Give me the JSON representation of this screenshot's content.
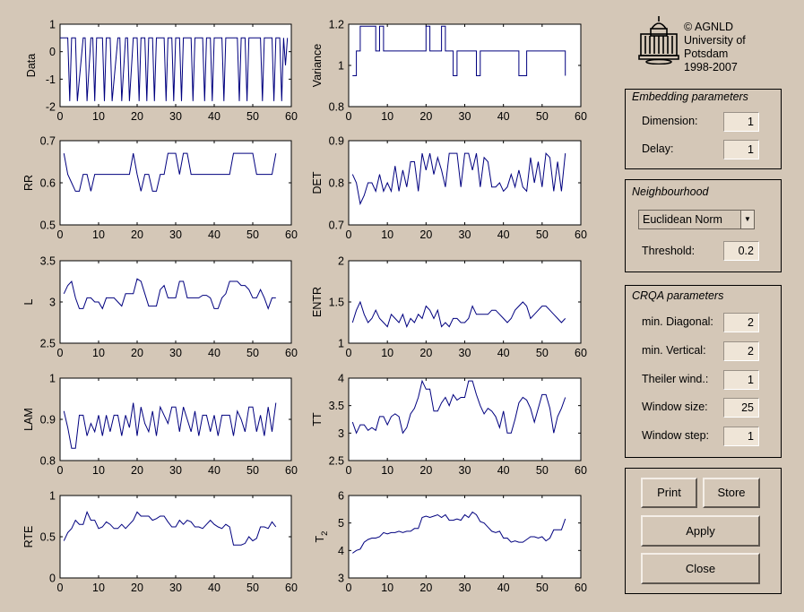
{
  "logo": {
    "name": "university-building-logo",
    "lines": [
      "© AGNLD",
      "University of",
      "Potsdam",
      "1998-2007"
    ]
  },
  "embedding": {
    "title": "Embedding parameters",
    "dimension_label": "Dimension:",
    "dimension_value": "1",
    "delay_label": "Delay:",
    "delay_value": "1"
  },
  "neighbourhood": {
    "title": "Neighbourhood",
    "norm_selected": "Euclidean Norm",
    "threshold_label": "Threshold:",
    "threshold_value": "0.2"
  },
  "crqa": {
    "title": "CRQA parameters",
    "min_diagonal_label": "min. Diagonal:",
    "min_diagonal_value": "2",
    "min_vertical_label": "min. Vertical:",
    "min_vertical_value": "2",
    "theiler_label": "Theiler wind.:",
    "theiler_value": "1",
    "window_size_label": "Window size:",
    "window_size_value": "25",
    "window_step_label": "Window step:",
    "window_step_value": "1"
  },
  "buttons": {
    "print": "Print",
    "store": "Store",
    "apply": "Apply",
    "close": "Close"
  },
  "colors": {
    "background": "#d4c7b7",
    "plot_bg": "#ffffff",
    "line": "#00007f"
  },
  "chart_data": [
    {
      "type": "line",
      "ylabel": "Data",
      "xlim": [
        0,
        60
      ],
      "ylim": [
        -2,
        1
      ],
      "yticks": [
        "-2",
        "-1",
        "0",
        "1"
      ],
      "xticks": [
        "0",
        "10",
        "20",
        "30",
        "40",
        "50",
        "60"
      ],
      "x": [
        0,
        2,
        2.5,
        3,
        4,
        4.5,
        6,
        6.5,
        7,
        8,
        8.5,
        9,
        9.5,
        11,
        11.5,
        12,
        13,
        13.5,
        15,
        15.5,
        16,
        17,
        17.5,
        18,
        19,
        20,
        20.5,
        21,
        22,
        22.5,
        23,
        24,
        24.5,
        25,
        26,
        27,
        27.5,
        28,
        29,
        29.5,
        30,
        31,
        31.5,
        32,
        33,
        34,
        34.5,
        35,
        36,
        37,
        37.5,
        38,
        39,
        39.5,
        40,
        41,
        42,
        42.5,
        43,
        45,
        46,
        46.5,
        47,
        48,
        48.5,
        49,
        51,
        52,
        52.5,
        53,
        54,
        55,
        55.5,
        56,
        57,
        57.5,
        58,
        58.5,
        59
      ],
      "y": [
        0.5,
        0.5,
        -1.8,
        0.5,
        0.5,
        -1.8,
        0.5,
        0.5,
        -1.8,
        0.5,
        0.5,
        -1.8,
        0.5,
        0.5,
        -1.8,
        0.5,
        0.5,
        -1.8,
        0.5,
        0.5,
        -1.8,
        0.5,
        0.5,
        -1.8,
        0.5,
        0.5,
        -1.8,
        0.5,
        0.5,
        -1.8,
        0.5,
        0.5,
        -1.8,
        0.5,
        0.5,
        0.5,
        -1.8,
        0.5,
        0.5,
        -1.8,
        0.5,
        0.5,
        -1.8,
        0.5,
        0.5,
        0.5,
        -1.8,
        0.5,
        0.5,
        0.5,
        -1.8,
        0.5,
        0.5,
        -1.8,
        0.5,
        0.5,
        0.5,
        -1.8,
        0.5,
        0.5,
        0.5,
        -1.8,
        0.5,
        0.5,
        -1.8,
        0.5,
        0.5,
        0.5,
        -1.8,
        0.5,
        0.5,
        0.5,
        -1.8,
        0.5,
        0.5,
        -1.8,
        0.5,
        -0.5,
        0.5
      ]
    },
    {
      "type": "line",
      "ylabel": "Variance",
      "xlim": [
        0,
        60
      ],
      "ylim": [
        0.8,
        1.2
      ],
      "yticks": [
        "0.8",
        "1",
        "1.2"
      ],
      "xticks": [
        "0",
        "10",
        "20",
        "30",
        "40",
        "50",
        "60"
      ],
      "step": true,
      "x": [
        1,
        2,
        3,
        7,
        8,
        9,
        12,
        19,
        20,
        21,
        24,
        25,
        27,
        28,
        29,
        33,
        34,
        35,
        36,
        44,
        45,
        46,
        49,
        50,
        56
      ],
      "y": [
        0.95,
        1.07,
        1.19,
        1.07,
        1.19,
        1.07,
        1.07,
        1.07,
        1.19,
        1.07,
        1.19,
        1.07,
        0.95,
        1.07,
        1.07,
        0.95,
        1.07,
        1.07,
        1.07,
        0.95,
        0.95,
        1.07,
        1.07,
        1.07,
        0.95
      ]
    },
    {
      "type": "line",
      "ylabel": "RR",
      "xlim": [
        0,
        60
      ],
      "ylim": [
        0.5,
        0.7
      ],
      "yticks": [
        "0.5",
        "0.6",
        "0.7"
      ],
      "xticks": [
        "0",
        "10",
        "20",
        "30",
        "40",
        "50",
        "60"
      ],
      "x": [
        1,
        2,
        3,
        4,
        5,
        6,
        7,
        8,
        9,
        10,
        11,
        12,
        13,
        14,
        15,
        16,
        17,
        18,
        19,
        20,
        21,
        22,
        23,
        24,
        25,
        26,
        27,
        28,
        29,
        30,
        31,
        32,
        33,
        34,
        35,
        36,
        37,
        38,
        39,
        40,
        41,
        42,
        43,
        44,
        45,
        46,
        47,
        48,
        49,
        50,
        51,
        52,
        53,
        54,
        55,
        56
      ],
      "y": [
        0.67,
        0.62,
        0.6,
        0.58,
        0.58,
        0.62,
        0.62,
        0.58,
        0.62,
        0.62,
        0.62,
        0.62,
        0.62,
        0.62,
        0.62,
        0.62,
        0.62,
        0.62,
        0.67,
        0.62,
        0.58,
        0.62,
        0.62,
        0.58,
        0.58,
        0.62,
        0.62,
        0.67,
        0.67,
        0.67,
        0.62,
        0.67,
        0.67,
        0.62,
        0.62,
        0.62,
        0.62,
        0.62,
        0.62,
        0.62,
        0.62,
        0.62,
        0.62,
        0.62,
        0.67,
        0.67,
        0.67,
        0.67,
        0.67,
        0.67,
        0.62,
        0.62,
        0.62,
        0.62,
        0.62,
        0.67
      ]
    },
    {
      "type": "line",
      "ylabel": "DET",
      "xlim": [
        0,
        60
      ],
      "ylim": [
        0.7,
        0.9
      ],
      "yticks": [
        "0.7",
        "0.8",
        "0.9"
      ],
      "xticks": [
        "0",
        "10",
        "20",
        "30",
        "40",
        "50",
        "60"
      ],
      "x": [
        1,
        2,
        3,
        4,
        5,
        6,
        7,
        8,
        9,
        10,
        11,
        12,
        13,
        14,
        15,
        16,
        17,
        18,
        19,
        20,
        21,
        22,
        23,
        24,
        25,
        26,
        27,
        28,
        29,
        30,
        31,
        32,
        33,
        34,
        35,
        36,
        37,
        38,
        39,
        40,
        41,
        42,
        43,
        44,
        45,
        46,
        47,
        48,
        49,
        50,
        51,
        52,
        53,
        54,
        55,
        56
      ],
      "y": [
        0.82,
        0.8,
        0.75,
        0.77,
        0.8,
        0.8,
        0.78,
        0.82,
        0.78,
        0.8,
        0.78,
        0.84,
        0.78,
        0.83,
        0.79,
        0.85,
        0.85,
        0.78,
        0.87,
        0.83,
        0.87,
        0.82,
        0.86,
        0.83,
        0.79,
        0.87,
        0.87,
        0.87,
        0.79,
        0.87,
        0.87,
        0.83,
        0.87,
        0.79,
        0.86,
        0.85,
        0.79,
        0.79,
        0.8,
        0.78,
        0.79,
        0.82,
        0.79,
        0.83,
        0.79,
        0.78,
        0.86,
        0.8,
        0.85,
        0.79,
        0.87,
        0.86,
        0.78,
        0.85,
        0.78,
        0.87
      ]
    },
    {
      "type": "line",
      "ylabel": "L",
      "xlim": [
        0,
        60
      ],
      "ylim": [
        2.5,
        3.5
      ],
      "yticks": [
        "2.5",
        "3",
        "3.5"
      ],
      "xticks": [
        "0",
        "10",
        "20",
        "30",
        "40",
        "50",
        "60"
      ],
      "x": [
        1,
        2,
        3,
        4,
        5,
        6,
        7,
        8,
        9,
        10,
        11,
        12,
        13,
        14,
        15,
        16,
        17,
        18,
        19,
        20,
        21,
        22,
        23,
        24,
        25,
        26,
        27,
        28,
        29,
        30,
        31,
        32,
        33,
        34,
        35,
        36,
        37,
        38,
        39,
        40,
        41,
        42,
        43,
        44,
        45,
        46,
        47,
        48,
        49,
        50,
        51,
        52,
        53,
        54,
        55,
        56
      ],
      "y": [
        3.1,
        3.2,
        3.25,
        3.05,
        2.92,
        2.92,
        3.05,
        3.05,
        3.0,
        3.0,
        2.92,
        3.05,
        3.05,
        3.05,
        3.0,
        2.95,
        3.1,
        3.1,
        3.1,
        3.28,
        3.25,
        3.1,
        2.95,
        2.95,
        2.95,
        3.15,
        3.2,
        3.05,
        3.05,
        3.05,
        3.25,
        3.25,
        3.05,
        3.05,
        3.05,
        3.05,
        3.08,
        3.08,
        3.05,
        2.92,
        2.92,
        3.05,
        3.1,
        3.25,
        3.25,
        3.25,
        3.2,
        3.2,
        3.15,
        3.05,
        3.05,
        3.15,
        3.05,
        2.92,
        3.05,
        3.05
      ]
    },
    {
      "type": "line",
      "ylabel": "ENTR",
      "xlim": [
        0,
        60
      ],
      "ylim": [
        1,
        2
      ],
      "yticks": [
        "1",
        "1.5",
        "2"
      ],
      "xticks": [
        "0",
        "10",
        "20",
        "30",
        "40",
        "50",
        "60"
      ],
      "x": [
        1,
        2,
        3,
        4,
        5,
        6,
        7,
        8,
        9,
        10,
        11,
        12,
        13,
        14,
        15,
        16,
        17,
        18,
        19,
        20,
        21,
        22,
        23,
        24,
        25,
        26,
        27,
        28,
        29,
        30,
        31,
        32,
        33,
        34,
        35,
        36,
        37,
        38,
        39,
        40,
        41,
        42,
        43,
        44,
        45,
        46,
        47,
        48,
        49,
        50,
        51,
        52,
        53,
        54,
        55,
        56
      ],
      "y": [
        1.25,
        1.4,
        1.5,
        1.35,
        1.25,
        1.3,
        1.4,
        1.3,
        1.25,
        1.2,
        1.35,
        1.3,
        1.25,
        1.35,
        1.2,
        1.3,
        1.25,
        1.35,
        1.3,
        1.45,
        1.4,
        1.3,
        1.4,
        1.2,
        1.25,
        1.2,
        1.3,
        1.3,
        1.25,
        1.25,
        1.3,
        1.45,
        1.35,
        1.35,
        1.35,
        1.35,
        1.4,
        1.4,
        1.35,
        1.3,
        1.25,
        1.3,
        1.4,
        1.45,
        1.5,
        1.45,
        1.3,
        1.35,
        1.4,
        1.45,
        1.45,
        1.4,
        1.35,
        1.3,
        1.25,
        1.3
      ]
    },
    {
      "type": "line",
      "ylabel": "LAM",
      "xlim": [
        0,
        60
      ],
      "ylim": [
        0.8,
        1
      ],
      "yticks": [
        "0.8",
        "0.9",
        "1"
      ],
      "xticks": [
        "0",
        "10",
        "20",
        "30",
        "40",
        "50",
        "60"
      ],
      "x": [
        1,
        2,
        3,
        4,
        5,
        6,
        7,
        8,
        9,
        10,
        11,
        12,
        13,
        14,
        15,
        16,
        17,
        18,
        19,
        20,
        21,
        22,
        23,
        24,
        25,
        26,
        27,
        28,
        29,
        30,
        31,
        32,
        33,
        34,
        35,
        36,
        37,
        38,
        39,
        40,
        41,
        42,
        43,
        44,
        45,
        46,
        47,
        48,
        49,
        50,
        51,
        52,
        53,
        54,
        55,
        56
      ],
      "y": [
        0.92,
        0.88,
        0.83,
        0.83,
        0.91,
        0.91,
        0.86,
        0.89,
        0.87,
        0.91,
        0.86,
        0.91,
        0.87,
        0.91,
        0.91,
        0.86,
        0.91,
        0.88,
        0.94,
        0.86,
        0.93,
        0.89,
        0.87,
        0.92,
        0.86,
        0.93,
        0.91,
        0.89,
        0.93,
        0.93,
        0.87,
        0.93,
        0.9,
        0.87,
        0.92,
        0.86,
        0.91,
        0.91,
        0.87,
        0.91,
        0.86,
        0.91,
        0.91,
        0.91,
        0.86,
        0.92,
        0.9,
        0.87,
        0.93,
        0.93,
        0.87,
        0.91,
        0.86,
        0.93,
        0.87,
        0.94
      ]
    },
    {
      "type": "line",
      "ylabel": "TT",
      "xlim": [
        0,
        60
      ],
      "ylim": [
        2.5,
        4
      ],
      "yticks": [
        "2.5",
        "3",
        "3.5",
        "4"
      ],
      "xticks": [
        "0",
        "10",
        "20",
        "30",
        "40",
        "50",
        "60"
      ],
      "x": [
        1,
        2,
        3,
        4,
        5,
        6,
        7,
        8,
        9,
        10,
        11,
        12,
        13,
        14,
        15,
        16,
        17,
        18,
        19,
        20,
        21,
        22,
        23,
        24,
        25,
        26,
        27,
        28,
        29,
        30,
        31,
        32,
        33,
        34,
        35,
        36,
        37,
        38,
        39,
        40,
        41,
        42,
        43,
        44,
        45,
        46,
        47,
        48,
        49,
        50,
        51,
        52,
        53,
        54,
        55,
        56
      ],
      "y": [
        3.2,
        3.0,
        3.15,
        3.15,
        3.05,
        3.1,
        3.05,
        3.3,
        3.3,
        3.15,
        3.3,
        3.35,
        3.3,
        3.0,
        3.1,
        3.35,
        3.45,
        3.65,
        3.95,
        3.8,
        3.8,
        3.4,
        3.4,
        3.55,
        3.65,
        3.5,
        3.7,
        3.6,
        3.65,
        3.65,
        3.95,
        3.95,
        3.7,
        3.5,
        3.35,
        3.45,
        3.4,
        3.3,
        3.1,
        3.4,
        3.0,
        3.0,
        3.25,
        3.55,
        3.65,
        3.6,
        3.45,
        3.2,
        3.45,
        3.7,
        3.7,
        3.45,
        3.0,
        3.3,
        3.45,
        3.65
      ]
    },
    {
      "type": "line",
      "ylabel": "RTE",
      "xlim": [
        0,
        60
      ],
      "ylim": [
        0,
        1
      ],
      "yticks": [
        "0",
        "0.5",
        "1"
      ],
      "xticks": [
        "0",
        "10",
        "20",
        "30",
        "40",
        "50",
        "60"
      ],
      "x": [
        1,
        2,
        3,
        4,
        5,
        6,
        7,
        8,
        9,
        10,
        11,
        12,
        13,
        14,
        15,
        16,
        17,
        18,
        19,
        20,
        21,
        22,
        23,
        24,
        25,
        26,
        27,
        28,
        29,
        30,
        31,
        32,
        33,
        34,
        35,
        36,
        37,
        38,
        39,
        40,
        41,
        42,
        43,
        44,
        45,
        46,
        47,
        48,
        49,
        50,
        51,
        52,
        53,
        54,
        55,
        56
      ],
      "y": [
        0.45,
        0.55,
        0.6,
        0.7,
        0.65,
        0.65,
        0.8,
        0.7,
        0.7,
        0.6,
        0.62,
        0.68,
        0.65,
        0.6,
        0.6,
        0.65,
        0.6,
        0.65,
        0.7,
        0.8,
        0.75,
        0.75,
        0.75,
        0.7,
        0.72,
        0.75,
        0.75,
        0.68,
        0.62,
        0.62,
        0.7,
        0.65,
        0.7,
        0.68,
        0.62,
        0.62,
        0.6,
        0.65,
        0.7,
        0.65,
        0.62,
        0.6,
        0.65,
        0.62,
        0.4,
        0.4,
        0.4,
        0.42,
        0.5,
        0.45,
        0.48,
        0.62,
        0.62,
        0.6,
        0.68,
        0.62
      ]
    },
    {
      "type": "line",
      "ylabel": "T_2",
      "xlim": [
        0,
        60
      ],
      "ylim": [
        3,
        6
      ],
      "yticks": [
        "3",
        "4",
        "5",
        "6"
      ],
      "xticks": [
        "0",
        "10",
        "20",
        "30",
        "40",
        "50",
        "60"
      ],
      "x": [
        1,
        2,
        3,
        4,
        5,
        6,
        7,
        8,
        9,
        10,
        11,
        12,
        13,
        14,
        15,
        16,
        17,
        18,
        19,
        20,
        21,
        22,
        23,
        24,
        25,
        26,
        27,
        28,
        29,
        30,
        31,
        32,
        33,
        34,
        35,
        36,
        37,
        38,
        39,
        40,
        41,
        42,
        43,
        44,
        45,
        46,
        47,
        48,
        49,
        50,
        51,
        52,
        53,
        54,
        55,
        56
      ],
      "y": [
        3.9,
        4.0,
        4.05,
        4.3,
        4.4,
        4.45,
        4.45,
        4.5,
        4.65,
        4.6,
        4.65,
        4.65,
        4.7,
        4.65,
        4.7,
        4.7,
        4.8,
        4.8,
        5.2,
        5.25,
        5.2,
        5.25,
        5.3,
        5.2,
        5.3,
        5.1,
        5.1,
        5.15,
        5.1,
        5.3,
        5.2,
        5.4,
        5.3,
        5.05,
        5.0,
        4.85,
        4.7,
        4.65,
        4.7,
        4.45,
        4.45,
        4.3,
        4.35,
        4.3,
        4.3,
        4.4,
        4.5,
        4.5,
        4.45,
        4.5,
        4.35,
        4.45,
        4.75,
        4.75,
        4.75,
        5.15
      ]
    }
  ]
}
